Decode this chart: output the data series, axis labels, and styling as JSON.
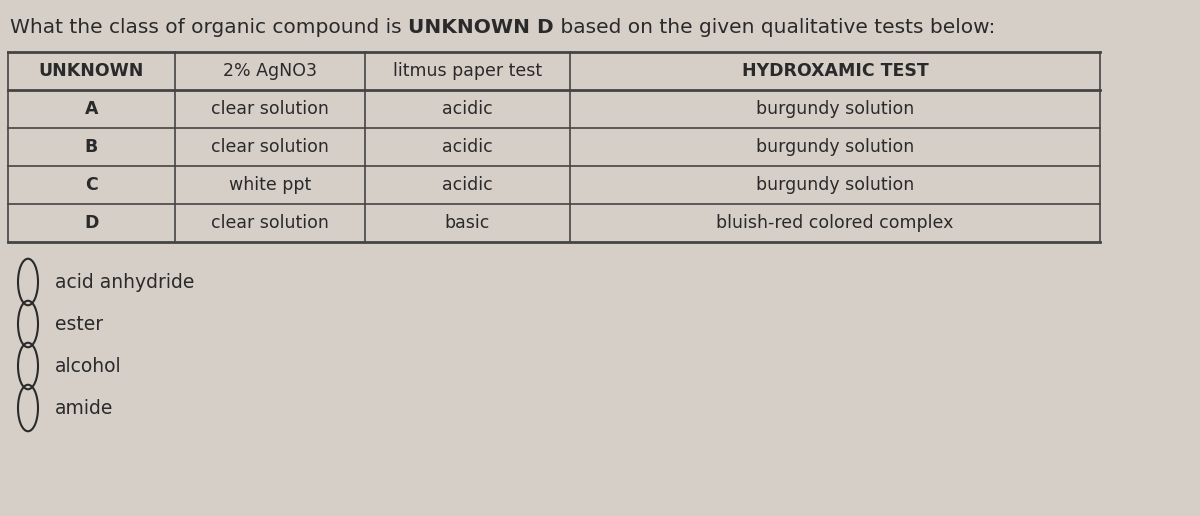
{
  "title_normal": "What the class of organic compound is ",
  "title_bold": "UNKNOWN D",
  "title_end": " based on the given qualitative tests below:",
  "title_fontsize": 14.5,
  "bg_color": "#d6cfc8",
  "header_row": [
    "UNKNOWN",
    "2% AgNO3",
    "litmus paper test",
    "HYDROXAMIC TEST"
  ],
  "header_bold": [
    true,
    false,
    false,
    true
  ],
  "rows": [
    [
      "A",
      "clear solution",
      "acidic",
      "burgundy solution"
    ],
    [
      "B",
      "clear solution",
      "acidic",
      "burgundy solution"
    ],
    [
      "C",
      "white ppt",
      "acidic",
      "burgundy solution"
    ],
    [
      "D",
      "clear solution",
      "basic",
      "bluish-red colored complex"
    ]
  ],
  "options": [
    "acid anhydride",
    "ester",
    "alcohol",
    "amide"
  ],
  "text_color": "#2a2a2a",
  "line_color": "#444444"
}
